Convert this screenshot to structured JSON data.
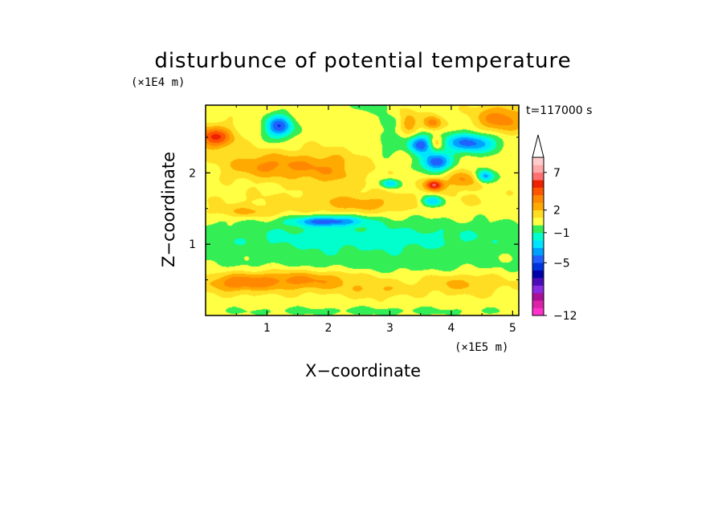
{
  "chart_data": {
    "type": "heatmap",
    "title": "disturbunce of potential temperature",
    "xlabel": "X−coordinate",
    "ylabel": "Z−coordinate",
    "x_unit": "(×1E5 m)",
    "y_unit": "(×1E4 m)",
    "time_label": "t=117000 s",
    "xlim": [
      0,
      5.1
    ],
    "ylim": [
      0,
      2.95
    ],
    "x_ticks": [
      "1",
      "2",
      "3",
      "4",
      "5"
    ],
    "x_tick_values": [
      1,
      2,
      3,
      4,
      5
    ],
    "y_ticks": [
      "1",
      "2"
    ],
    "y_tick_values": [
      1,
      2
    ],
    "colorbar": {
      "levels": [
        -12,
        -11,
        -10,
        -9,
        -8,
        -7,
        -6,
        -5,
        -4,
        -3,
        -2,
        -1,
        0,
        1,
        2,
        3,
        4,
        5,
        6,
        7,
        8,
        9
      ],
      "colors": [
        "#ff33cc",
        "#dd22aa",
        "#aa1199",
        "#8a2be2",
        "#4b0db8",
        "#0000aa",
        "#0033dd",
        "#2060ff",
        "#00a0ff",
        "#00e5ff",
        "#00ffcc",
        "#33ee55",
        "#ffff44",
        "#ffdd22",
        "#ffaa00",
        "#ff8800",
        "#ff5500",
        "#ee2200",
        "#ff7070",
        "#ffaaaa",
        "#ffcccc"
      ],
      "labels": [
        "7",
        "2",
        "−1",
        "−5",
        "−12"
      ],
      "label_values": [
        7,
        2,
        -1,
        -5,
        -12
      ],
      "extend": "max"
    },
    "background_value": 0.6,
    "features": [
      {
        "x": 1.2,
        "z": 2.65,
        "rx": 0.22,
        "rz": 0.16,
        "amp": -5.5
      },
      {
        "x": 3.5,
        "z": 2.4,
        "rx": 0.2,
        "rz": 0.13,
        "amp": -5.0
      },
      {
        "x": 3.75,
        "z": 2.15,
        "rx": 0.24,
        "rz": 0.13,
        "amp": -5.5
      },
      {
        "x": 4.3,
        "z": 2.42,
        "rx": 0.45,
        "rz": 0.14,
        "amp": -5.0
      },
      {
        "x": 4.55,
        "z": 1.95,
        "rx": 0.15,
        "rz": 0.09,
        "amp": -4.5
      },
      {
        "x": 3.7,
        "z": 1.6,
        "rx": 0.18,
        "rz": 0.08,
        "amp": -4.0
      },
      {
        "x": 3.0,
        "z": 1.85,
        "rx": 0.14,
        "rz": 0.06,
        "amp": -3.5
      },
      {
        "x": 2.0,
        "z": 1.32,
        "rx": 0.55,
        "rz": 0.07,
        "amp": -4.5
      },
      {
        "x": 3.72,
        "z": 1.83,
        "rx": 0.15,
        "rz": 0.08,
        "amp": 5.5
      },
      {
        "x": 3.7,
        "z": 2.7,
        "rx": 0.15,
        "rz": 0.1,
        "amp": 3.0
      },
      {
        "x": 3.75,
        "z": 2.42,
        "rx": 0.12,
        "rz": 0.1,
        "amp": 2.5
      },
      {
        "x": 3.3,
        "z": 2.7,
        "rx": 0.15,
        "rz": 0.15,
        "amp": 2.5
      },
      {
        "x": 4.8,
        "z": 2.75,
        "rx": 0.4,
        "rz": 0.2,
        "amp": 3.0
      },
      {
        "x": 4.2,
        "z": 1.9,
        "rx": 0.3,
        "rz": 0.12,
        "amp": 2.5
      },
      {
        "x": 0.15,
        "z": 2.5,
        "rx": 0.3,
        "rz": 0.15,
        "amp": 4.5
      },
      {
        "x": 1.0,
        "z": 2.1,
        "rx": 0.7,
        "rz": 0.18,
        "amp": 2.5
      },
      {
        "x": 2.0,
        "z": 2.05,
        "rx": 0.6,
        "rz": 0.25,
        "amp": 2.0
      },
      {
        "x": 2.5,
        "z": 1.55,
        "rx": 0.8,
        "rz": 0.12,
        "amp": 1.4
      },
      {
        "x": 0.7,
        "z": 1.45,
        "rx": 0.6,
        "rz": 0.08,
        "amp": 1.6
      },
      {
        "x": 2.4,
        "z": 1.6,
        "rx": 2.4,
        "rz": 0.14,
        "amp": 0.7
      },
      {
        "x": 2.55,
        "z": 1.08,
        "rx": 3.2,
        "rz": 0.27,
        "amp": -2.1
      },
      {
        "x": 2.55,
        "z": 0.7,
        "rx": 3.2,
        "rz": 0.16,
        "amp": -0.9
      },
      {
        "x": 1.5,
        "z": 0.5,
        "rx": 1.1,
        "rz": 0.15,
        "amp": 2.8
      },
      {
        "x": 0.5,
        "z": 0.45,
        "rx": 0.5,
        "rz": 0.12,
        "amp": 2.2
      },
      {
        "x": 4.2,
        "z": 0.45,
        "rx": 0.7,
        "rz": 0.15,
        "amp": 1.6
      },
      {
        "x": 2.8,
        "z": 0.35,
        "rx": 0.5,
        "rz": 0.1,
        "amp": 1.2
      },
      {
        "x": 2.5,
        "z": 0.06,
        "rx": 3.0,
        "rz": 0.07,
        "amp": -0.9
      },
      {
        "x": 2.7,
        "z": 2.95,
        "rx": 0.3,
        "rz": 0.1,
        "amp": -1.4
      },
      {
        "x": 3.0,
        "z": 2.4,
        "rx": 0.25,
        "rz": 0.2,
        "amp": -1.1
      },
      {
        "x": 3.0,
        "z": 2.7,
        "rx": 0.2,
        "rz": 0.12,
        "amp": -1.2
      }
    ]
  }
}
